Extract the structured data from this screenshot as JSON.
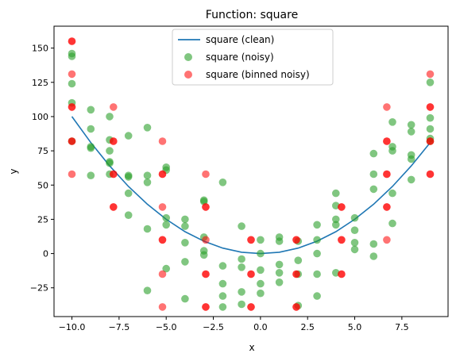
{
  "chart_data": {
    "type": "scatter",
    "title": "Function: square",
    "xlabel": "x",
    "ylabel": "y",
    "xlim": [
      -10.95,
      9.95
    ],
    "ylim": [
      -46,
      166
    ],
    "x_ticks": [
      -10.0,
      -7.5,
      -5.0,
      -2.5,
      0.0,
      2.5,
      5.0,
      7.5
    ],
    "x_tick_labels": [
      "−10.0",
      "−7.5",
      "−5.0",
      "−2.5",
      "0.0",
      "2.5",
      "5.0",
      "7.5"
    ],
    "y_ticks": [
      -25,
      0,
      25,
      50,
      75,
      100,
      125,
      150
    ],
    "y_tick_labels": [
      "−25",
      "0",
      "25",
      "50",
      "75",
      "100",
      "125",
      "150"
    ],
    "grid": false,
    "legend_position": "upper-center",
    "series": [
      {
        "name": "square (clean)",
        "kind": "line",
        "color": "#1f77b4",
        "x": [
          -10,
          -9,
          -8,
          -7,
          -6,
          -5,
          -4,
          -3,
          -2,
          -1,
          0,
          1,
          2,
          3,
          4,
          5,
          6,
          7,
          8,
          9
        ],
        "y": [
          100,
          81,
          64,
          49,
          36,
          25,
          16,
          9,
          4,
          1,
          0,
          1,
          4,
          9,
          16,
          25,
          36,
          49,
          64,
          81
        ]
      },
      {
        "name": "square (noisy)",
        "kind": "scatter",
        "color": "#2ca02c",
        "alpha": 0.6,
        "points": [
          [
            -10,
            146
          ],
          [
            -10,
            144
          ],
          [
            -10,
            124
          ],
          [
            -10,
            110
          ],
          [
            -10,
            82
          ],
          [
            -9,
            105
          ],
          [
            -9,
            91
          ],
          [
            -9,
            78
          ],
          [
            -9,
            77
          ],
          [
            -9,
            57
          ],
          [
            -8,
            100
          ],
          [
            -8,
            83
          ],
          [
            -8,
            75
          ],
          [
            -8,
            67
          ],
          [
            -8,
            66
          ],
          [
            -8,
            58
          ],
          [
            -7,
            86
          ],
          [
            -7,
            57
          ],
          [
            -7,
            56
          ],
          [
            -7,
            44
          ],
          [
            -7,
            28
          ],
          [
            -6,
            92
          ],
          [
            -6,
            57
          ],
          [
            -6,
            52
          ],
          [
            -6,
            18
          ],
          [
            -6,
            -27
          ],
          [
            -5,
            63
          ],
          [
            -5,
            61
          ],
          [
            -5,
            26
          ],
          [
            -5,
            21
          ],
          [
            -5,
            -11
          ],
          [
            -4,
            25
          ],
          [
            -4,
            20
          ],
          [
            -4,
            8
          ],
          [
            -4,
            -6
          ],
          [
            -4,
            -33
          ],
          [
            -3,
            39
          ],
          [
            -3,
            38
          ],
          [
            -3,
            12
          ],
          [
            -3,
            2
          ],
          [
            -3,
            -1
          ],
          [
            -2,
            52
          ],
          [
            -2,
            -9
          ],
          [
            -2,
            -22
          ],
          [
            -2,
            -31
          ],
          [
            -2,
            -39
          ],
          [
            -1,
            20
          ],
          [
            -1,
            -4
          ],
          [
            -1,
            -10
          ],
          [
            -1,
            -28
          ],
          [
            -1,
            -37
          ],
          [
            0,
            10
          ],
          [
            0,
            0
          ],
          [
            0,
            -12
          ],
          [
            0,
            -22
          ],
          [
            0,
            -29
          ],
          [
            1,
            12
          ],
          [
            1,
            9
          ],
          [
            1,
            -8
          ],
          [
            1,
            -14
          ],
          [
            1,
            -21
          ],
          [
            2,
            9
          ],
          [
            2,
            -5
          ],
          [
            2,
            -15
          ],
          [
            2,
            -38
          ],
          [
            3,
            21
          ],
          [
            3,
            10
          ],
          [
            3,
            0
          ],
          [
            3,
            -15
          ],
          [
            3,
            -31
          ],
          [
            4,
            44
          ],
          [
            4,
            35
          ],
          [
            4,
            25
          ],
          [
            4,
            21
          ],
          [
            4,
            -14
          ],
          [
            5,
            26
          ],
          [
            5,
            17
          ],
          [
            5,
            8
          ],
          [
            5,
            3
          ],
          [
            6,
            73
          ],
          [
            6,
            58
          ],
          [
            6,
            47
          ],
          [
            6,
            7
          ],
          [
            6,
            -2
          ],
          [
            7,
            96
          ],
          [
            7,
            78
          ],
          [
            7,
            75
          ],
          [
            7,
            44
          ],
          [
            7,
            22
          ],
          [
            8,
            94
          ],
          [
            8,
            89
          ],
          [
            8,
            72
          ],
          [
            8,
            69
          ],
          [
            8,
            54
          ],
          [
            9,
            125
          ],
          [
            9,
            99
          ],
          [
            9,
            91
          ],
          [
            9,
            84
          ],
          [
            9,
            82
          ]
        ]
      },
      {
        "name": "square (binned noisy)",
        "kind": "scatter",
        "color": "#ff0000",
        "alpha": 0.55,
        "points": [
          [
            -10,
            155
          ],
          [
            -10,
            155
          ],
          [
            -10,
            131
          ],
          [
            -10,
            107
          ],
          [
            -10,
            107
          ],
          [
            -10,
            82
          ],
          [
            -10,
            82
          ],
          [
            -10,
            58
          ],
          [
            -7.8,
            107
          ],
          [
            -7.8,
            82
          ],
          [
            -7.8,
            82
          ],
          [
            -7.8,
            58
          ],
          [
            -7.8,
            58
          ],
          [
            -7.8,
            34
          ],
          [
            -7.8,
            34
          ],
          [
            -5.2,
            82
          ],
          [
            -5.2,
            58
          ],
          [
            -5.2,
            58
          ],
          [
            -5.2,
            34
          ],
          [
            -5.2,
            10
          ],
          [
            -5.2,
            10
          ],
          [
            -5.2,
            -15
          ],
          [
            -5.2,
            -39
          ],
          [
            -2.9,
            58
          ],
          [
            -2.9,
            34
          ],
          [
            -2.9,
            34
          ],
          [
            -2.9,
            10
          ],
          [
            -2.9,
            -15
          ],
          [
            -2.9,
            -15
          ],
          [
            -2.9,
            -39
          ],
          [
            -2.9,
            -39
          ],
          [
            -0.5,
            10
          ],
          [
            -0.5,
            10
          ],
          [
            -0.5,
            -15
          ],
          [
            -0.5,
            -15
          ],
          [
            -0.5,
            -39
          ],
          [
            -0.5,
            -39
          ],
          [
            1.9,
            10
          ],
          [
            1.9,
            10
          ],
          [
            1.9,
            -15
          ],
          [
            1.9,
            -15
          ],
          [
            1.9,
            -39
          ],
          [
            1.9,
            -39
          ],
          [
            4.3,
            34
          ],
          [
            4.3,
            34
          ],
          [
            4.3,
            10
          ],
          [
            4.3,
            10
          ],
          [
            4.3,
            -15
          ],
          [
            4.3,
            -15
          ],
          [
            6.7,
            107
          ],
          [
            6.7,
            82
          ],
          [
            6.7,
            82
          ],
          [
            6.7,
            58
          ],
          [
            6.7,
            58
          ],
          [
            6.7,
            34
          ],
          [
            6.7,
            34
          ],
          [
            6.7,
            10
          ],
          [
            9,
            131
          ],
          [
            9,
            107
          ],
          [
            9,
            107
          ],
          [
            9,
            82
          ],
          [
            9,
            82
          ],
          [
            9,
            58
          ],
          [
            9,
            58
          ]
        ]
      }
    ]
  }
}
